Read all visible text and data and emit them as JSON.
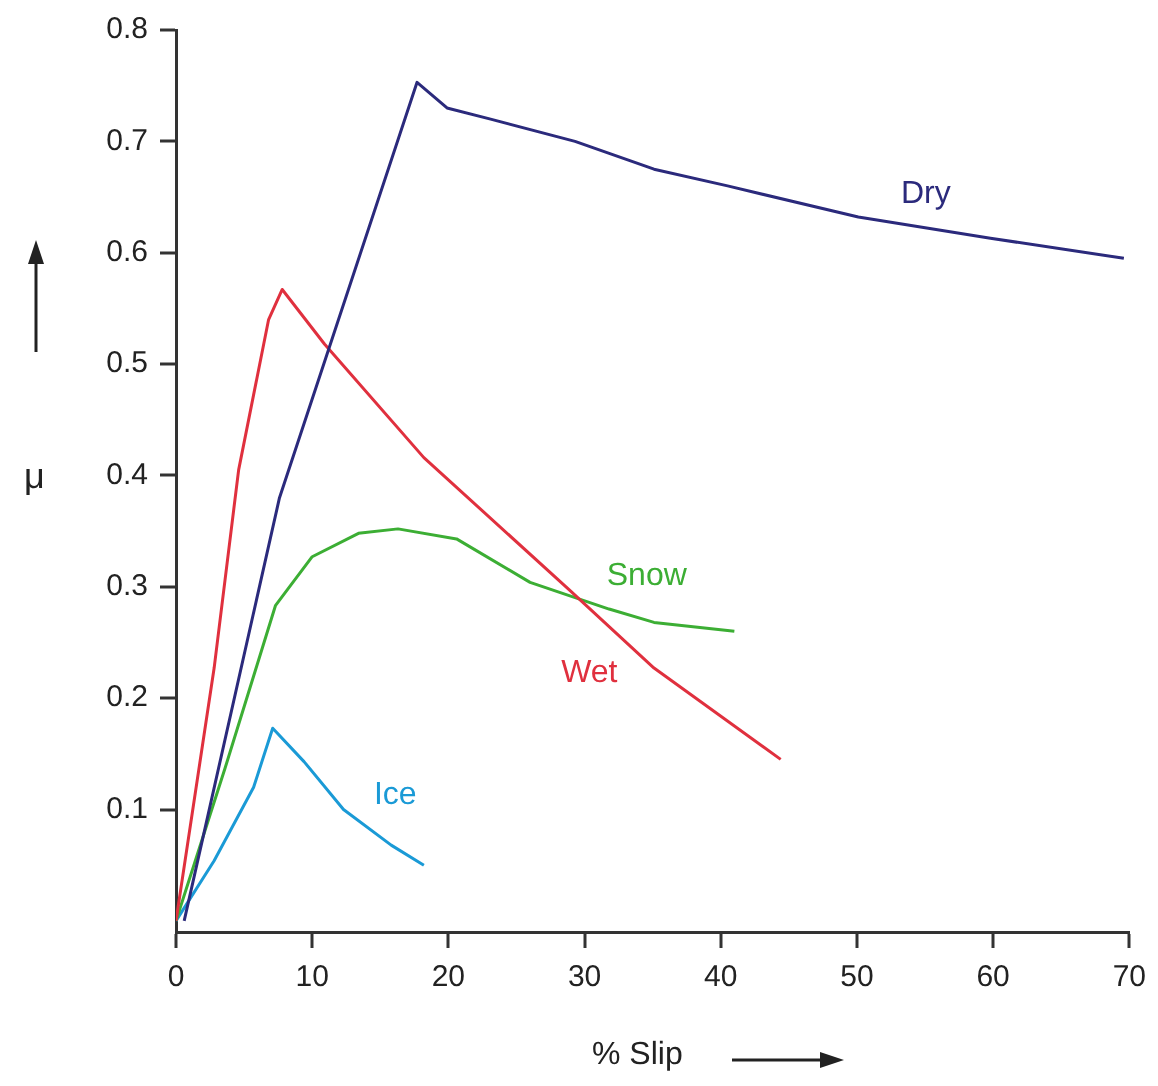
{
  "chart_data": {
    "type": "line",
    "xlabel": "% Slip",
    "ylabel": "μ",
    "xlim": [
      0,
      70
    ],
    "xticks": [
      0,
      10,
      20,
      30,
      40,
      50,
      60,
      70
    ],
    "ylim": [
      -0.01,
      0.8
    ],
    "yticks": [
      0.1,
      0.2,
      0.3,
      0.4,
      0.5,
      0.6,
      0.7,
      0.8
    ],
    "grid": false,
    "legend": false,
    "marker": "none",
    "line_style": "solid",
    "series": [
      {
        "name": "Dry",
        "color": "#2b2a7c",
        "x": [
          0.6,
          7.6,
          17.7,
          19.9,
          23.1,
          29.3,
          35.1,
          40.5,
          50.1,
          59.8,
          69.6
        ],
        "values": [
          0,
          0.38,
          0.753,
          0.73,
          0.72,
          0.7,
          0.675,
          0.66,
          0.632,
          0.613,
          0.595
        ]
      },
      {
        "name": "Wet",
        "color": "#e0303e",
        "x": [
          0,
          2.8,
          4.6,
          6.8,
          7.8,
          10.9,
          18.2,
          28.9,
          35.1,
          44.4
        ],
        "values": [
          0,
          0.227,
          0.405,
          0.54,
          0.567,
          0.518,
          0.416,
          0.297,
          0.227,
          0.145
        ]
      },
      {
        "name": "Snow",
        "color": "#3cae34",
        "x": [
          0,
          3.6,
          7.3,
          10,
          13.4,
          16.3,
          20.6,
          26,
          31.8,
          35.1,
          41
        ],
        "values": [
          0,
          0.137,
          0.283,
          0.327,
          0.348,
          0.352,
          0.343,
          0.304,
          0.28,
          0.268,
          0.26
        ]
      },
      {
        "name": "Ice",
        "color": "#1a9ad6",
        "x": [
          0,
          2.8,
          5.7,
          7.1,
          9.4,
          12.3,
          15.8,
          18.2
        ],
        "values": [
          0,
          0.054,
          0.12,
          0.173,
          0.143,
          0.1,
          0.068,
          0.05
        ]
      }
    ]
  }
}
